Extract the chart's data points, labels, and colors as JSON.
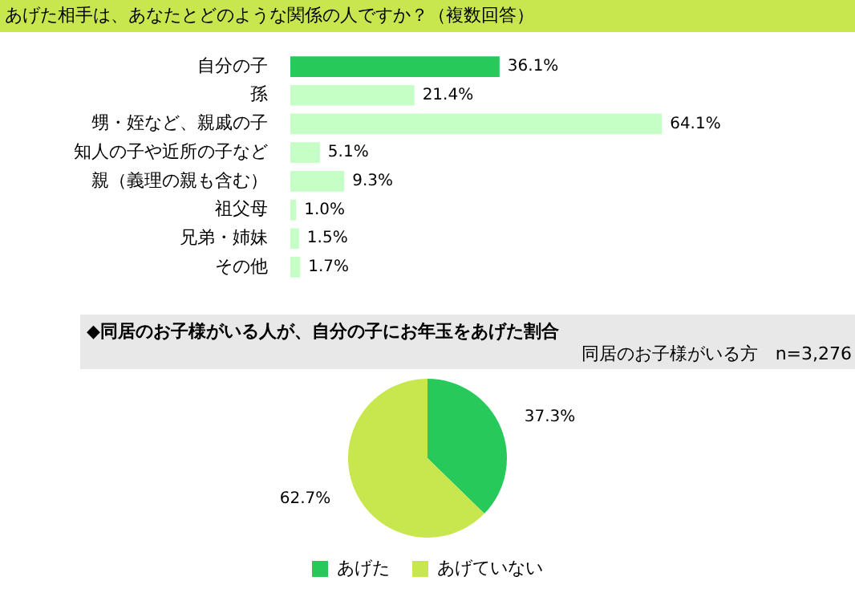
{
  "chart_data": [
    {
      "type": "bar",
      "orientation": "horizontal",
      "title": "あげた相手は、あなたとどのような関係の人ですか？（複数回答）",
      "categories": [
        "自分の子",
        "孫",
        "甥・姪など、親戚の子",
        "知人の子や近所の子など",
        "親（義理の親も含む）",
        "祖父母",
        "兄弟・姉妹",
        "その他"
      ],
      "values": [
        36.1,
        21.4,
        64.1,
        5.1,
        9.3,
        1.0,
        1.5,
        1.7
      ],
      "colors": [
        "#26c95a",
        "#c6ffc6",
        "#c6ffc6",
        "#c6ffc6",
        "#c6ffc6",
        "#c6ffc6",
        "#c6ffc6",
        "#c6ffc6"
      ],
      "value_labels": [
        "36.1%",
        "21.4%",
        "64.1%",
        "5.1%",
        "9.3%",
        "1.0%",
        "1.5%",
        "1.7%"
      ]
    },
    {
      "type": "pie",
      "title": "◆同居のお子様がいる人が、自分の子にお年玉をあげた割合",
      "subtitle": "同居のお子様がいる方　n=3,276",
      "categories": [
        "あげた",
        "あげていない"
      ],
      "values": [
        37.3,
        62.7
      ],
      "colors": [
        "#26c95a",
        "#c8e64e"
      ],
      "value_labels": [
        "37.3%",
        "62.7%"
      ],
      "legend": "bottom"
    }
  ]
}
